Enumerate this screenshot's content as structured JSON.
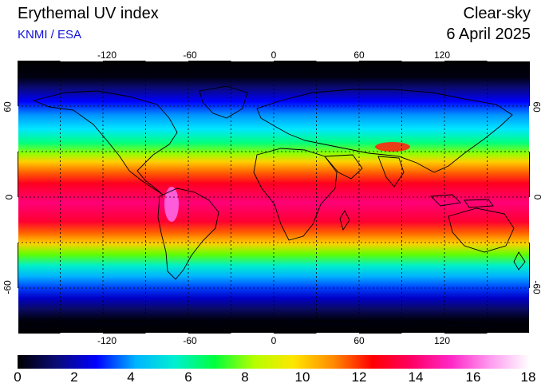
{
  "header": {
    "title": "Erythemal UV index",
    "credit": "KNMI / ESA",
    "mode": "Clear-sky",
    "date": "6 April 2025"
  },
  "map": {
    "lon_labels": [
      "-120",
      "-60",
      "0",
      "60",
      "120"
    ],
    "lat_labels": [
      "60",
      "0",
      "-60"
    ],
    "projection": "equirectangular",
    "lon_range": [
      -180,
      180
    ],
    "lat_range": [
      -90,
      90
    ],
    "grid": "dashed black, 30 degree spacing"
  },
  "colorbar": {
    "ticks": [
      "0",
      "2",
      "4",
      "6",
      "8",
      "10",
      "12",
      "14",
      "16",
      "18"
    ],
    "range": [
      0,
      18
    ],
    "colors": [
      "#000000",
      "#0a0a78",
      "#0000ff",
      "#00b4ff",
      "#00f0d0",
      "#00ff3c",
      "#b4ff00",
      "#ffe600",
      "#ff8c00",
      "#ff0000",
      "#ff0064",
      "#ff28c8",
      "#ff9cf0",
      "#ffffff"
    ]
  }
}
